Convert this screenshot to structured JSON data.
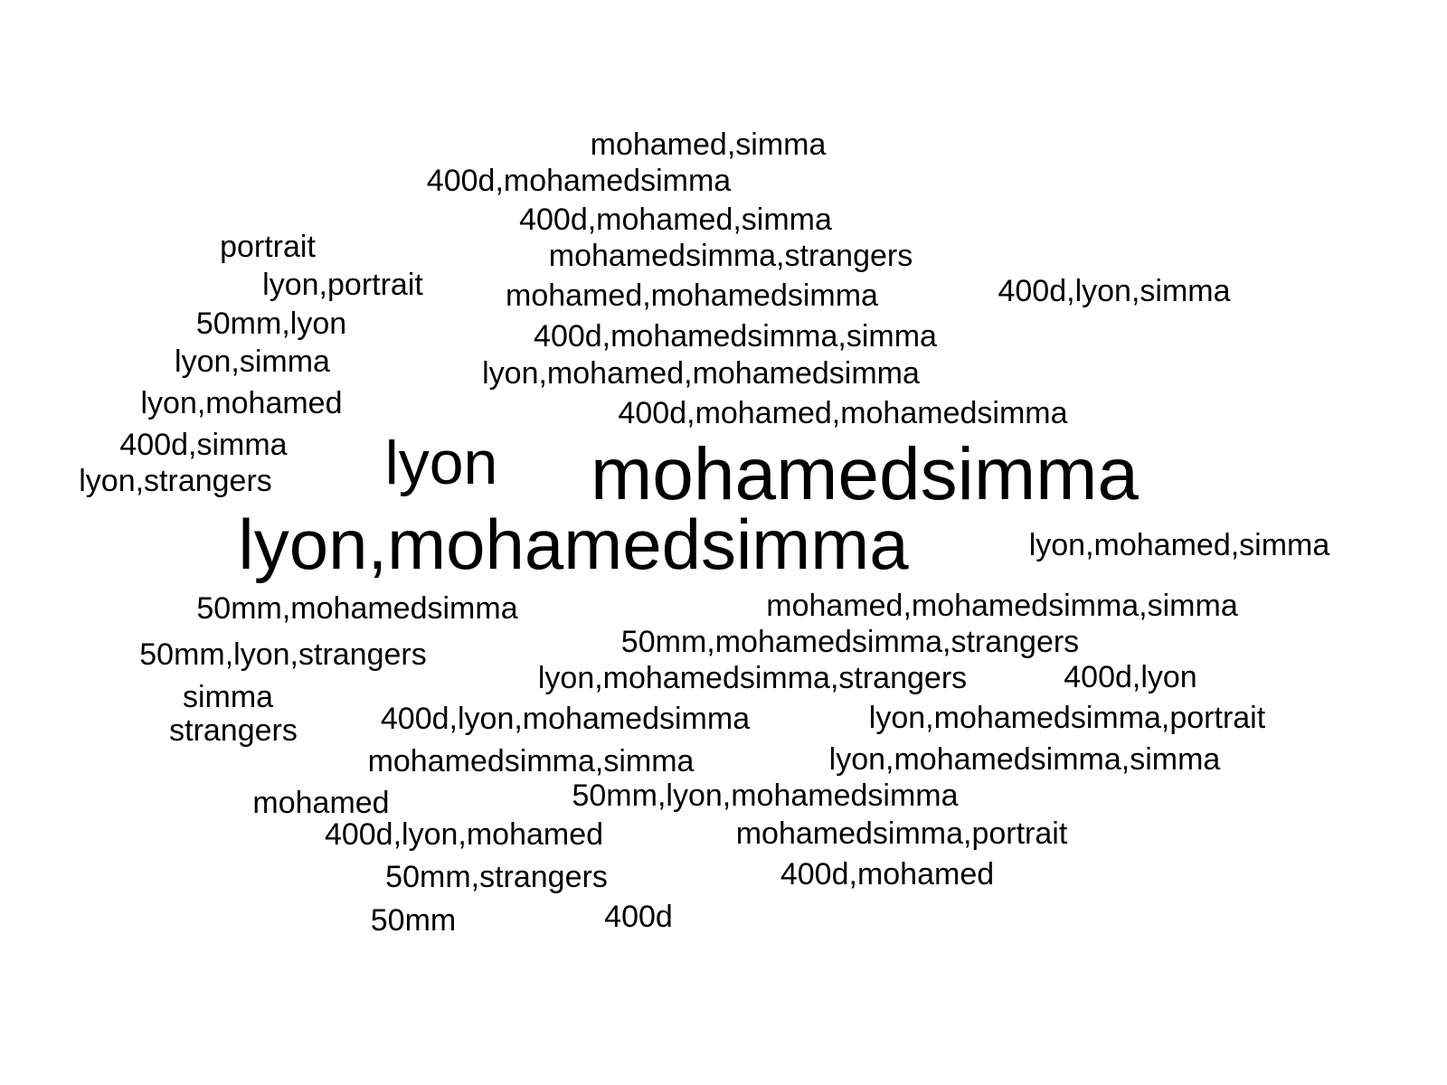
{
  "chart_data": {
    "type": "wordcloud",
    "words": [
      {
        "text": "mohamed,simma",
        "weight": 1
      },
      {
        "text": "400d,mohamedsimma",
        "weight": 1
      },
      {
        "text": "400d,mohamed,simma",
        "weight": 1
      },
      {
        "text": "mohamedsimma,strangers",
        "weight": 1
      },
      {
        "text": "mohamed,mohamedsimma",
        "weight": 1
      },
      {
        "text": "400d,lyon,simma",
        "weight": 1
      },
      {
        "text": "portrait",
        "weight": 1
      },
      {
        "text": "lyon,portrait",
        "weight": 1
      },
      {
        "text": "50mm,lyon",
        "weight": 1
      },
      {
        "text": "400d,mohamedsimma,simma",
        "weight": 1
      },
      {
        "text": "lyon,simma",
        "weight": 1
      },
      {
        "text": "lyon,mohamed,mohamedsimma",
        "weight": 1
      },
      {
        "text": "lyon,mohamed",
        "weight": 1
      },
      {
        "text": "400d,mohamed,mohamedsimma",
        "weight": 1
      },
      {
        "text": "400d,simma",
        "weight": 1
      },
      {
        "text": "lyon",
        "weight": 2
      },
      {
        "text": "mohamedsimma",
        "weight": 2.4
      },
      {
        "text": "lyon,strangers",
        "weight": 1
      },
      {
        "text": "lyon,mohamedsimma",
        "weight": 2.3
      },
      {
        "text": "lyon,mohamed,simma",
        "weight": 1
      },
      {
        "text": "50mm,mohamedsimma",
        "weight": 1
      },
      {
        "text": "mohamed,mohamedsimma,simma",
        "weight": 1
      },
      {
        "text": "50mm,mohamedsimma,strangers",
        "weight": 1
      },
      {
        "text": "50mm,lyon,strangers",
        "weight": 1
      },
      {
        "text": "lyon,mohamedsimma,strangers",
        "weight": 1
      },
      {
        "text": "400d,lyon",
        "weight": 1
      },
      {
        "text": "simma",
        "weight": 1
      },
      {
        "text": "400d,lyon,mohamedsimma",
        "weight": 1
      },
      {
        "text": "lyon,mohamedsimma,portrait",
        "weight": 1
      },
      {
        "text": "strangers",
        "weight": 1
      },
      {
        "text": "mohamedsimma,simma",
        "weight": 1
      },
      {
        "text": "lyon,mohamedsimma,simma",
        "weight": 1
      },
      {
        "text": "mohamed",
        "weight": 1
      },
      {
        "text": "50mm,lyon,mohamedsimma",
        "weight": 1
      },
      {
        "text": "400d,lyon,mohamed",
        "weight": 1
      },
      {
        "text": "mohamedsimma,portrait",
        "weight": 1
      },
      {
        "text": "50mm,strangers",
        "weight": 1
      },
      {
        "text": "400d,mohamed",
        "weight": 1
      },
      {
        "text": "50mm",
        "weight": 1
      },
      {
        "text": "400d",
        "weight": 1
      }
    ]
  }
}
